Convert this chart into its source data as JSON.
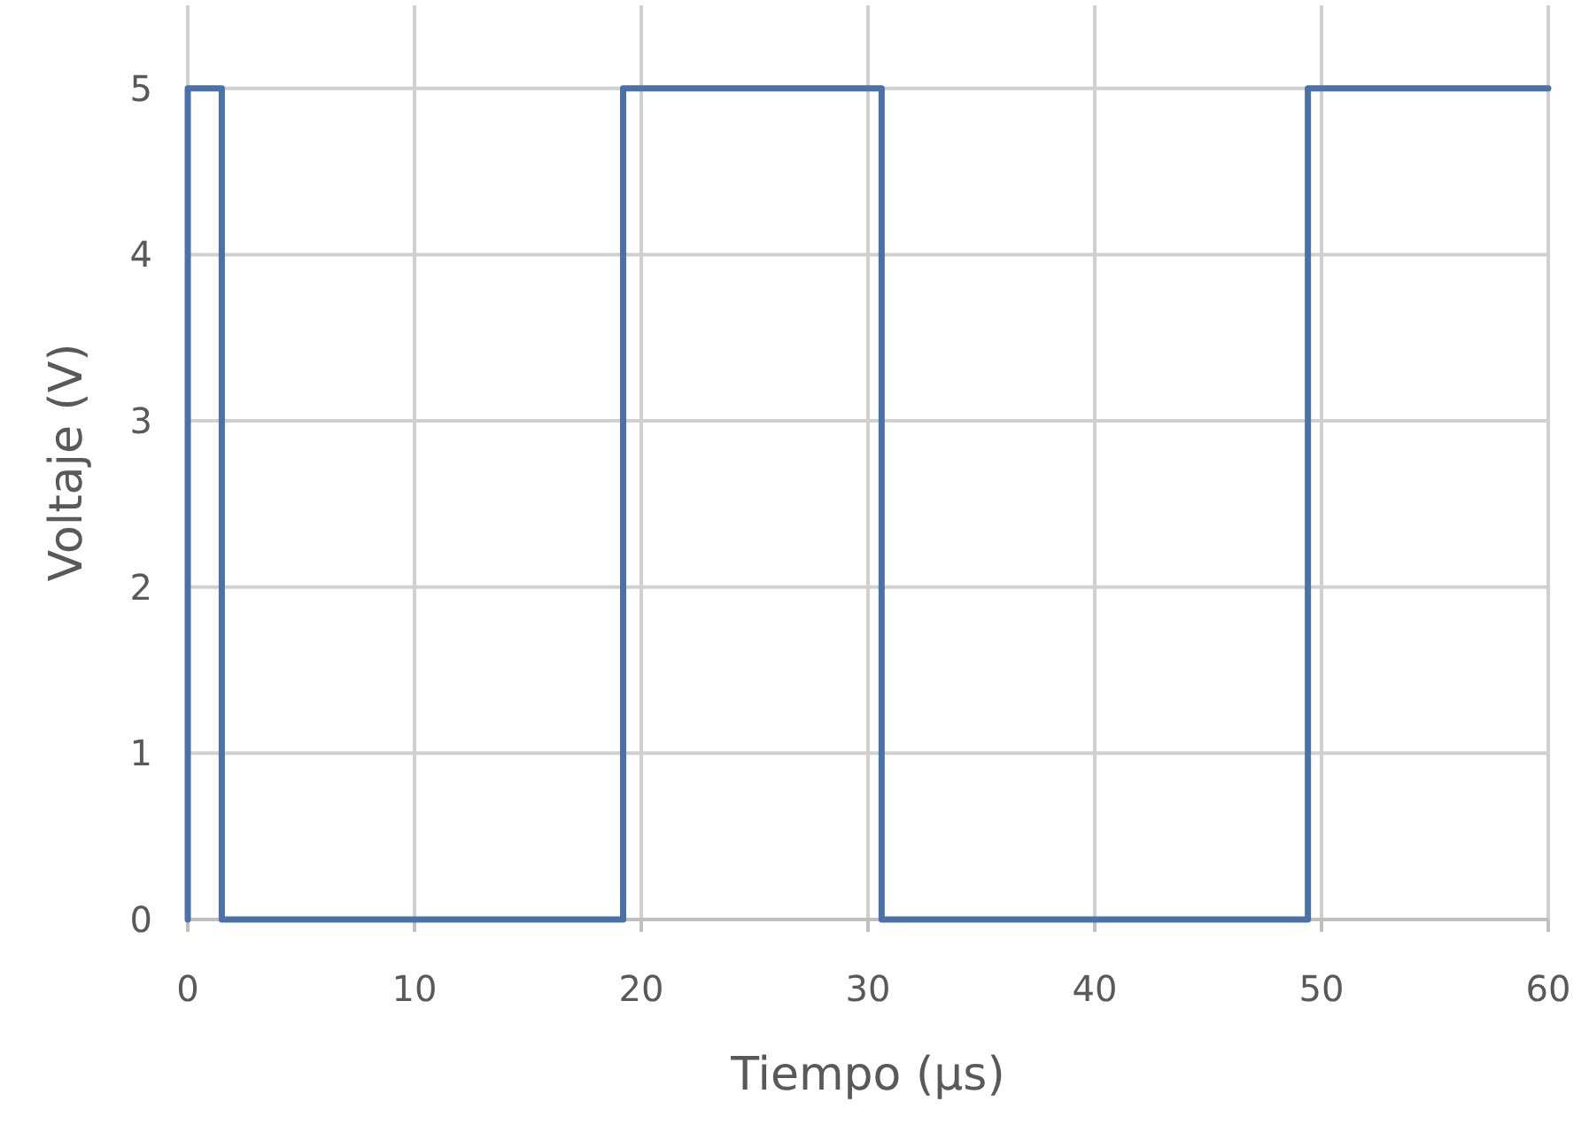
{
  "chart_data": {
    "type": "line",
    "xlabel": "Tiempo (µs)",
    "ylabel": "Voltaje (V)",
    "x": [
      0,
      0,
      1.5,
      1.5,
      19.2,
      19.2,
      30.6,
      30.6,
      49.4,
      49.4,
      60
    ],
    "series": [
      {
        "color": "#4a72a8",
        "values": [
          0,
          5,
          5,
          0,
          0,
          5,
          5,
          0,
          0,
          5,
          5
        ]
      }
    ],
    "xlim": [
      0,
      60
    ],
    "xticks": [
      0,
      10,
      20,
      30,
      40,
      50,
      60
    ],
    "ylim": [
      0,
      5.5
    ],
    "yticks": [
      0,
      1,
      2,
      3,
      4,
      5
    ],
    "grid": true,
    "marker": "none",
    "line_style": "solid"
  }
}
